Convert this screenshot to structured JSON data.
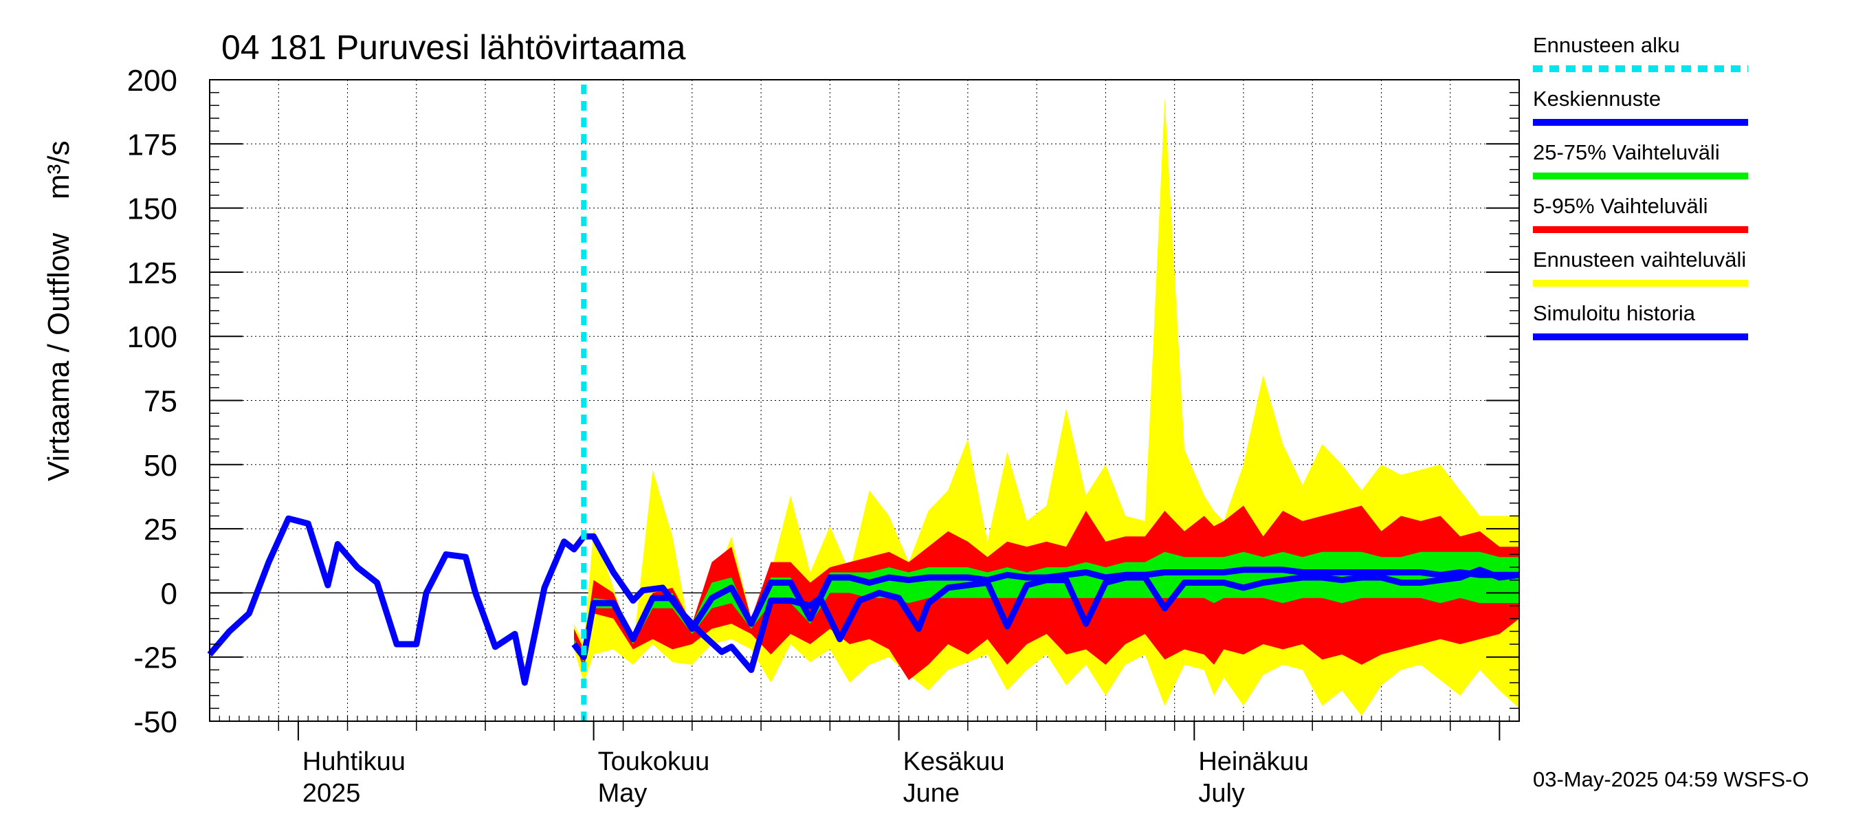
{
  "chart_data": {
    "type": "area",
    "title": "04 181 Puruvesi lähtövirtaama",
    "ylabel": "Virtaama / Outflow    m³/s",
    "ylim": [
      -50,
      200
    ],
    "xlim": [
      "2025-03-23",
      "2025-08-03"
    ],
    "yticks": [
      200,
      175,
      150,
      125,
      100,
      75,
      50,
      25,
      0,
      -25,
      -50
    ],
    "grid": true,
    "month_labels": [
      {
        "fi": "Huhtikuu",
        "en": "2025",
        "date": "2025-04-01"
      },
      {
        "fi": "Toukokuu",
        "en": "May",
        "date": "2025-05-01"
      },
      {
        "fi": "Kesäkuu",
        "en": "June",
        "date": "2025-06-01"
      },
      {
        "fi": "Heinäkuu",
        "en": "July",
        "date": "2025-07-01"
      }
    ],
    "forecast_start": "2025-04-30",
    "legend": [
      {
        "label": "Ennusteen alku",
        "color": "#00e5ee",
        "style": "dashed"
      },
      {
        "label": "Keskiennuste",
        "color": "#0000ff",
        "style": "solid"
      },
      {
        "label": "25-75% Vaihteluväli",
        "color": "#00ee00",
        "style": "solid"
      },
      {
        "label": "5-95% Vaihteluväli",
        "color": "#ff0000",
        "style": "solid"
      },
      {
        "label": "Ennusteen vaihteluväli",
        "color": "#ffff00",
        "style": "solid"
      },
      {
        "label": "Simuloitu historia",
        "color": "#0000ff",
        "style": "solid"
      }
    ],
    "legend_position": "right",
    "footer": "03-May-2025 04:59 WSFS-O",
    "forecast_dates": [
      "2025-04-29",
      "2025-04-30",
      "2025-05-01",
      "2025-05-03",
      "2025-05-05",
      "2025-05-07",
      "2025-05-09",
      "2025-05-11",
      "2025-05-13",
      "2025-05-15",
      "2025-05-17",
      "2025-05-19",
      "2025-05-21",
      "2025-05-23",
      "2025-05-25",
      "2025-05-27",
      "2025-05-29",
      "2025-05-31",
      "2025-06-02",
      "2025-06-04",
      "2025-06-06",
      "2025-06-08",
      "2025-06-10",
      "2025-06-12",
      "2025-06-14",
      "2025-06-16",
      "2025-06-18",
      "2025-06-20",
      "2025-06-22",
      "2025-06-24",
      "2025-06-26",
      "2025-06-28",
      "2025-06-30",
      "2025-07-02",
      "2025-07-03",
      "2025-07-04",
      "2025-07-06",
      "2025-07-08",
      "2025-07-10",
      "2025-07-12",
      "2025-07-14",
      "2025-07-16",
      "2025-07-18",
      "2025-07-20",
      "2025-07-22",
      "2025-07-24",
      "2025-07-26",
      "2025-07-28",
      "2025-07-30",
      "2025-08-01",
      "2025-08-03"
    ],
    "series": [
      {
        "name": "Ennusteen vaihteluväli",
        "color": "#ffff00",
        "kind": "band",
        "upper": [
          -12,
          -20,
          25,
          2,
          -22,
          48,
          22,
          -20,
          2,
          22,
          -10,
          8,
          38,
          8,
          26,
          8,
          40,
          30,
          12,
          32,
          40,
          60,
          20,
          55,
          28,
          34,
          72,
          38,
          50,
          30,
          28,
          193,
          56,
          38,
          32,
          28,
          50,
          85,
          58,
          42,
          58,
          50,
          40,
          50,
          46,
          48,
          50,
          40,
          30,
          30,
          30
        ],
        "lower": [
          -22,
          -35,
          -24,
          -22,
          -28,
          -20,
          -27,
          -28,
          -20,
          -18,
          -22,
          -35,
          -20,
          -27,
          -22,
          -35,
          -28,
          -25,
          -32,
          -38,
          -30,
          -27,
          -24,
          -38,
          -30,
          -24,
          -36,
          -28,
          -40,
          -28,
          -24,
          -44,
          -28,
          -30,
          -40,
          -33,
          -44,
          -32,
          -28,
          -30,
          -44,
          -38,
          -48,
          -36,
          -30,
          -28,
          -34,
          -40,
          -30,
          -38,
          -45
        ]
      },
      {
        "name": "5-95% Vaihteluväli",
        "color": "#ff0000",
        "kind": "band",
        "upper": [
          -14,
          -22,
          5,
          0,
          -18,
          0,
          2,
          -12,
          12,
          18,
          -10,
          12,
          12,
          4,
          10,
          12,
          14,
          16,
          12,
          18,
          24,
          20,
          14,
          20,
          18,
          20,
          18,
          32,
          20,
          22,
          22,
          32,
          24,
          30,
          26,
          28,
          34,
          22,
          32,
          28,
          30,
          32,
          34,
          24,
          30,
          28,
          30,
          22,
          24,
          18,
          18
        ],
        "lower": [
          -18,
          -30,
          -8,
          -10,
          -22,
          -18,
          -22,
          -20,
          -14,
          -12,
          -16,
          -24,
          -16,
          -20,
          -14,
          -20,
          -18,
          -22,
          -34,
          -28,
          -20,
          -24,
          -18,
          -28,
          -20,
          -16,
          -24,
          -22,
          -28,
          -20,
          -16,
          -26,
          -22,
          -24,
          -28,
          -22,
          -24,
          -20,
          -22,
          -20,
          -26,
          -24,
          -28,
          -24,
          -22,
          -20,
          -18,
          -20,
          -18,
          -16,
          -10
        ]
      },
      {
        "name": "25-75% Vaihteluväli",
        "color": "#00ee00",
        "kind": "band",
        "upper": [
          -18,
          -24,
          -2,
          -3,
          -18,
          -2,
          0,
          -12,
          4,
          6,
          -12,
          6,
          6,
          -8,
          8,
          8,
          8,
          10,
          8,
          10,
          10,
          10,
          8,
          10,
          8,
          10,
          10,
          12,
          10,
          12,
          12,
          16,
          14,
          14,
          14,
          14,
          16,
          14,
          16,
          14,
          16,
          16,
          16,
          14,
          14,
          16,
          16,
          16,
          16,
          14,
          14
        ],
        "lower": [
          -22,
          -27,
          -6,
          -6,
          -20,
          -6,
          -6,
          -16,
          -6,
          -4,
          -14,
          -4,
          -4,
          -12,
          0,
          0,
          -2,
          -2,
          -4,
          -2,
          -2,
          -2,
          -2,
          -2,
          -2,
          -2,
          -2,
          -2,
          -2,
          -2,
          -2,
          -2,
          -2,
          -2,
          -4,
          -2,
          -2,
          -2,
          -4,
          -2,
          -2,
          -4,
          -2,
          -2,
          -2,
          -2,
          -4,
          -2,
          -4,
          -4,
          -4
        ]
      },
      {
        "name": "Keskiennuste",
        "color": "#0000ff",
        "kind": "line",
        "values": [
          -20,
          -25,
          -4,
          -4,
          -18,
          -2,
          -2,
          -14,
          -2,
          2,
          -12,
          4,
          4,
          -10,
          6,
          6,
          4,
          6,
          5,
          6,
          6,
          6,
          5,
          7,
          6,
          6,
          7,
          8,
          6,
          7,
          7,
          8,
          8,
          8,
          8,
          8,
          9,
          9,
          9,
          8,
          8,
          8,
          8,
          8,
          8,
          8,
          7,
          8,
          7,
          7,
          7
        ]
      },
      {
        "name": "Simuloitu historia",
        "color": "#0000ff",
        "kind": "line",
        "dates": [
          "2025-03-23",
          "2025-03-25",
          "2025-03-27",
          "2025-03-29",
          "2025-03-31",
          "2025-04-01",
          "2025-04-02",
          "2025-04-04",
          "2025-04-05",
          "2025-04-07",
          "2025-04-09",
          "2025-04-11",
          "2025-04-13",
          "2025-04-14",
          "2025-04-16",
          "2025-04-18",
          "2025-04-19",
          "2025-04-21",
          "2025-04-23",
          "2025-04-24",
          "2025-04-26",
          "2025-04-28",
          "2025-04-29",
          "2025-04-30",
          "2025-05-01",
          "2025-05-03",
          "2025-05-05",
          "2025-05-06",
          "2025-05-08",
          "2025-05-10",
          "2025-05-12",
          "2025-05-14",
          "2025-05-15",
          "2025-05-17",
          "2025-05-19",
          "2025-05-21",
          "2025-05-23",
          "2025-05-24",
          "2025-05-26",
          "2025-05-28",
          "2025-05-30",
          "2025-06-01",
          "2025-06-03",
          "2025-06-04",
          "2025-06-06",
          "2025-06-08",
          "2025-06-10",
          "2025-06-12",
          "2025-06-14",
          "2025-06-16",
          "2025-06-18",
          "2025-06-20",
          "2025-06-22",
          "2025-06-24",
          "2025-06-26",
          "2025-06-28",
          "2025-06-30",
          "2025-07-02",
          "2025-07-04",
          "2025-07-06",
          "2025-07-08",
          "2025-07-10",
          "2025-07-12",
          "2025-07-14",
          "2025-07-16",
          "2025-07-18",
          "2025-07-20",
          "2025-07-22",
          "2025-07-24",
          "2025-07-26",
          "2025-07-28",
          "2025-07-30",
          "2025-08-01",
          "2025-08-03"
        ],
        "values": [
          -24,
          -15,
          -8,
          12,
          29,
          28,
          27,
          3,
          19,
          10,
          4,
          -20,
          -20,
          0,
          15,
          14,
          0,
          -21,
          -16,
          -35,
          2,
          20,
          17,
          22,
          22,
          8,
          -3,
          1,
          2,
          -8,
          -16,
          -23,
          -21,
          -30,
          -3,
          -3,
          -5,
          -2,
          -18,
          -3,
          0,
          -2,
          -14,
          -4,
          2,
          3,
          4,
          -13,
          3,
          5,
          5,
          -12,
          4,
          6,
          6,
          -6,
          4,
          4,
          4,
          2,
          4,
          5,
          6,
          6,
          5,
          6,
          6,
          4,
          4,
          5,
          6,
          9,
          6,
          7
        ]
      }
    ]
  }
}
